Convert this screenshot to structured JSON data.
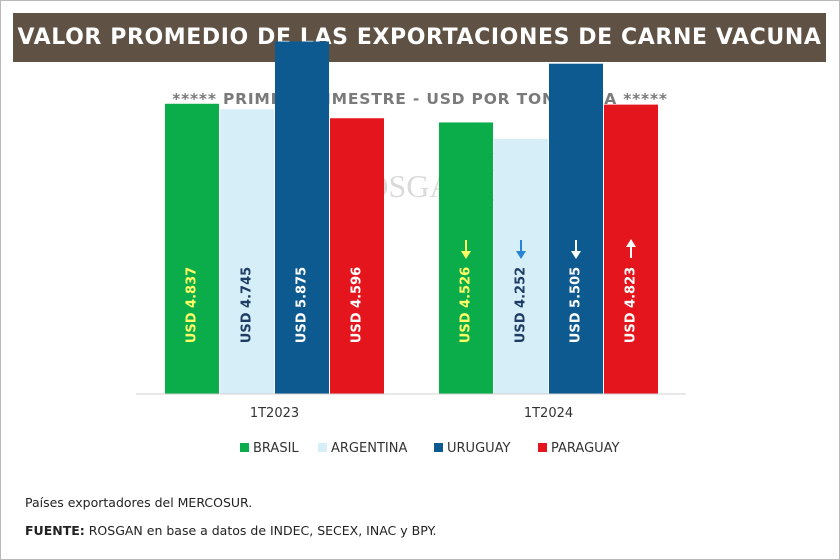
{
  "header": {
    "title": "VALOR PROMEDIO DE LAS EXPORTACIONES DE CARNE VACUNA",
    "subtitle": "***** PRIMER TRIMESTRE - USD POR TONELADA *****"
  },
  "watermark": {
    "text": "ROSGAN",
    "icon": "cow-head-icon"
  },
  "chart_data": {
    "type": "bar",
    "categories": [
      "1T2023",
      "1T2024"
    ],
    "series": [
      {
        "name": "BRASIL",
        "color": "#0aad4a",
        "values": [
          4837,
          4526
        ],
        "labels": [
          "USD 4.837",
          "USD 4.526"
        ],
        "label_color": "#ffff66"
      },
      {
        "name": "ARGENTINA",
        "color": "#d5eef8",
        "values": [
          4745,
          4252
        ],
        "labels": [
          "USD 4.745",
          "USD 4.252"
        ],
        "label_color": "#1f3c64"
      },
      {
        "name": "URUGUAY",
        "color": "#0d5a91",
        "values": [
          5875,
          5505
        ],
        "labels": [
          "USD 5.875",
          "USD 5.505"
        ],
        "label_color": "#ffffff"
      },
      {
        "name": "PARAGUAY",
        "color": "#e4151c",
        "values": [
          4596,
          4823
        ],
        "labels": [
          "USD 4.596",
          "USD 4.823"
        ],
        "label_color": "#ffffff"
      }
    ],
    "changes": [
      {
        "series": "BRASIL",
        "category": "1T2024",
        "direction": "down",
        "color": "#ffff66"
      },
      {
        "series": "ARGENTINA",
        "category": "1T2024",
        "direction": "down",
        "color": "#2a84d6"
      },
      {
        "series": "URUGUAY",
        "category": "1T2024",
        "direction": "down",
        "color": "#ffffff"
      },
      {
        "series": "PARAGUAY",
        "category": "1T2024",
        "direction": "up",
        "color": "#ffffff"
      }
    ],
    "ylim": [
      0,
      6000
    ],
    "grid": false,
    "legend_position": "bottom"
  },
  "footer": {
    "note": "Países exportadores del MERCOSUR.",
    "source_label": "FUENTE:",
    "source_text": " ROSGAN en base a datos de INDEC, SECEX, INAC y BPY."
  }
}
